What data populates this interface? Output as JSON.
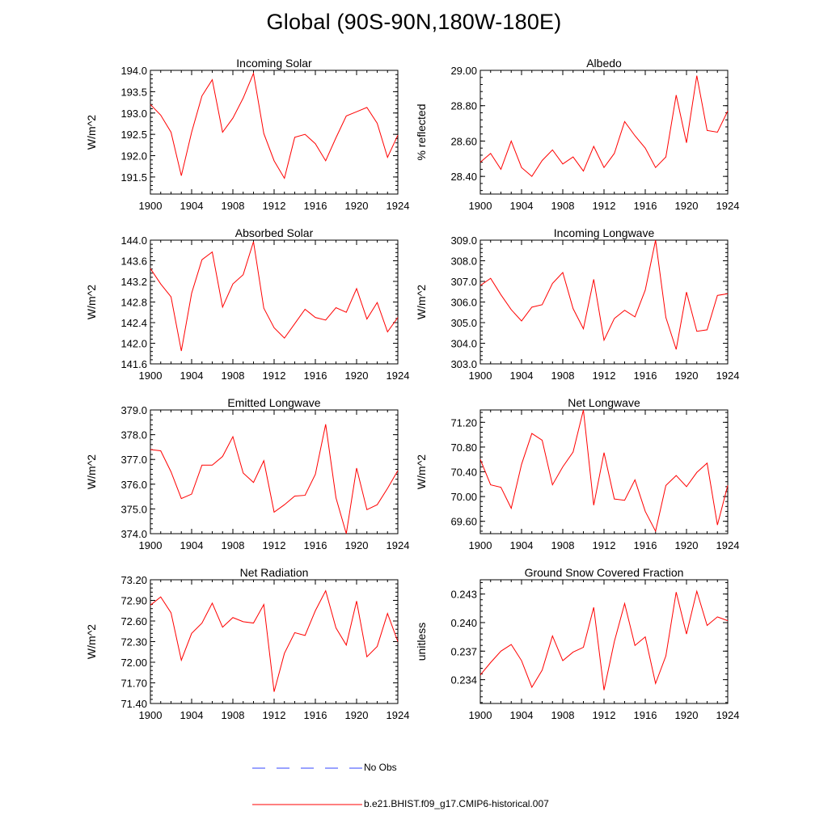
{
  "figure": {
    "title": "Global (90S-90N,180W-180E)"
  },
  "chart_data": [
    {
      "type": "line",
      "title": "Incoming Solar",
      "ylabel": "W/m^2",
      "xlim": [
        1900,
        1924
      ],
      "ylim": [
        191.1,
        194.0
      ],
      "x_ticks": [
        1900,
        1904,
        1908,
        1912,
        1916,
        1920,
        1924
      ],
      "x_tick_labels": [
        "1900",
        "1904",
        "1908",
        "1912",
        "1916",
        "1920",
        "1924"
      ],
      "y_ticks": [
        191.5,
        192.0,
        192.5,
        193.0,
        193.5,
        194.0
      ],
      "y_tick_labels": [
        "191.5",
        "192.0",
        "192.5",
        "193.0",
        "193.5",
        "194.0"
      ],
      "series": [
        {
          "name": "b.e21.BHIST.f09_g17.CMIP6-historical.007",
          "color": "#ff0000",
          "x": [
            1900,
            1901,
            1902,
            1903,
            1904,
            1905,
            1906,
            1907,
            1908,
            1909,
            1910,
            1911,
            1912,
            1913,
            1914,
            1915,
            1916,
            1917,
            1918,
            1919,
            1920,
            1921,
            1922,
            1923,
            1924
          ],
          "values": [
            193.2,
            192.95,
            192.55,
            191.53,
            192.55,
            193.4,
            193.78,
            192.55,
            192.88,
            193.35,
            193.93,
            192.52,
            191.88,
            191.47,
            192.43,
            192.5,
            192.28,
            191.88,
            192.42,
            192.93,
            193.03,
            193.13,
            192.76,
            191.96,
            192.48
          ]
        }
      ]
    },
    {
      "type": "line",
      "title": "Albedo",
      "ylabel": "% reflected",
      "xlim": [
        1900,
        1924
      ],
      "ylim": [
        28.3,
        29.0
      ],
      "x_ticks": [
        1900,
        1904,
        1908,
        1912,
        1916,
        1920,
        1924
      ],
      "x_tick_labels": [
        "1900",
        "1904",
        "1908",
        "1912",
        "1916",
        "1920",
        "1924"
      ],
      "y_ticks": [
        28.4,
        28.6,
        28.8,
        29.0
      ],
      "y_tick_labels": [
        "28.40",
        "28.60",
        "28.80",
        "29.00"
      ],
      "series": [
        {
          "name": "b.e21.BHIST.f09_g17.CMIP6-historical.007",
          "color": "#ff0000",
          "x": [
            1900,
            1901,
            1902,
            1903,
            1904,
            1905,
            1906,
            1907,
            1908,
            1909,
            1910,
            1911,
            1912,
            1913,
            1914,
            1915,
            1916,
            1917,
            1918,
            1919,
            1920,
            1921,
            1922,
            1923,
            1924
          ],
          "values": [
            28.48,
            28.53,
            28.44,
            28.6,
            28.45,
            28.4,
            28.49,
            28.55,
            28.47,
            28.51,
            28.43,
            28.57,
            28.45,
            28.53,
            28.71,
            28.63,
            28.56,
            28.45,
            28.51,
            28.86,
            28.59,
            28.97,
            28.66,
            28.65,
            28.77
          ]
        }
      ]
    },
    {
      "type": "line",
      "title": "Absorbed Solar",
      "ylabel": "W/m^2",
      "xlim": [
        1900,
        1924
      ],
      "ylim": [
        141.6,
        144.0
      ],
      "x_ticks": [
        1900,
        1904,
        1908,
        1912,
        1916,
        1920,
        1924
      ],
      "x_tick_labels": [
        "1900",
        "1904",
        "1908",
        "1912",
        "1916",
        "1920",
        "1924"
      ],
      "y_ticks": [
        141.6,
        142.0,
        142.4,
        142.8,
        143.2,
        143.6,
        144.0
      ],
      "y_tick_labels": [
        "141.6",
        "142.0",
        "142.4",
        "142.8",
        "143.2",
        "143.6",
        "144.0"
      ],
      "series": [
        {
          "name": "b.e21.BHIST.f09_g17.CMIP6-historical.007",
          "color": "#ff0000",
          "x": [
            1900,
            1901,
            1902,
            1903,
            1904,
            1905,
            1906,
            1907,
            1908,
            1909,
            1910,
            1911,
            1912,
            1913,
            1914,
            1915,
            1916,
            1917,
            1918,
            1919,
            1920,
            1921,
            1922,
            1923,
            1924
          ],
          "values": [
            143.45,
            143.15,
            142.9,
            141.85,
            142.97,
            143.62,
            143.77,
            142.7,
            143.15,
            143.33,
            143.97,
            142.68,
            142.3,
            142.1,
            142.38,
            142.66,
            142.5,
            142.45,
            142.69,
            142.6,
            143.06,
            142.47,
            142.79,
            142.22,
            142.5
          ]
        }
      ]
    },
    {
      "type": "line",
      "title": "Incoming Longwave",
      "ylabel": "W/m^2",
      "xlim": [
        1900,
        1924
      ],
      "ylim": [
        303.0,
        309.0
      ],
      "x_ticks": [
        1900,
        1904,
        1908,
        1912,
        1916,
        1920,
        1924
      ],
      "x_tick_labels": [
        "1900",
        "1904",
        "1908",
        "1912",
        "1916",
        "1920",
        "1924"
      ],
      "y_ticks": [
        303.0,
        304.0,
        305.0,
        306.0,
        307.0,
        308.0,
        309.0
      ],
      "y_tick_labels": [
        "303.0",
        "304.0",
        "305.0",
        "306.0",
        "307.0",
        "308.0",
        "309.0"
      ],
      "series": [
        {
          "name": "b.e21.BHIST.f09_g17.CMIP6-historical.007",
          "color": "#ff0000",
          "x": [
            1900,
            1901,
            1902,
            1903,
            1904,
            1905,
            1906,
            1907,
            1908,
            1909,
            1910,
            1911,
            1912,
            1913,
            1914,
            1915,
            1916,
            1917,
            1918,
            1919,
            1920,
            1921,
            1922,
            1923,
            1924
          ],
          "values": [
            306.8,
            307.15,
            306.35,
            305.63,
            305.08,
            305.75,
            305.87,
            306.9,
            307.43,
            305.68,
            304.7,
            307.1,
            304.15,
            305.2,
            305.6,
            305.28,
            306.58,
            309.0,
            305.25,
            303.7,
            306.48,
            304.58,
            304.65,
            306.32,
            306.4
          ]
        }
      ]
    },
    {
      "type": "line",
      "title": "Emitted Longwave",
      "ylabel": "W/m^2",
      "xlim": [
        1900,
        1924
      ],
      "ylim": [
        374.0,
        379.0
      ],
      "x_ticks": [
        1900,
        1904,
        1908,
        1912,
        1916,
        1920,
        1924
      ],
      "x_tick_labels": [
        "1900",
        "1904",
        "1908",
        "1912",
        "1916",
        "1920",
        "1924"
      ],
      "y_ticks": [
        374.0,
        375.0,
        376.0,
        377.0,
        378.0,
        379.0
      ],
      "y_tick_labels": [
        "374.0",
        "375.0",
        "376.0",
        "377.0",
        "378.0",
        "379.0"
      ],
      "series": [
        {
          "name": "b.e21.BHIST.f09_g17.CMIP6-historical.007",
          "color": "#ff0000",
          "x": [
            1900,
            1901,
            1902,
            1903,
            1904,
            1905,
            1906,
            1907,
            1908,
            1909,
            1910,
            1911,
            1912,
            1913,
            1914,
            1915,
            1916,
            1917,
            1918,
            1919,
            1920,
            1921,
            1922,
            1923,
            1924
          ],
          "values": [
            377.4,
            377.35,
            376.5,
            375.42,
            375.6,
            376.77,
            376.77,
            377.12,
            377.92,
            376.45,
            376.07,
            376.95,
            374.87,
            375.17,
            375.52,
            375.55,
            376.4,
            378.42,
            375.45,
            374.0,
            376.65,
            374.97,
            375.17,
            375.83,
            376.55
          ]
        }
      ]
    },
    {
      "type": "line",
      "title": "Net Longwave",
      "ylabel": "W/m^2",
      "xlim": [
        1900,
        1924
      ],
      "ylim": [
        69.4,
        71.4
      ],
      "x_ticks": [
        1900,
        1904,
        1908,
        1912,
        1916,
        1920,
        1924
      ],
      "x_tick_labels": [
        "1900",
        "1904",
        "1908",
        "1912",
        "1916",
        "1920",
        "1924"
      ],
      "y_ticks": [
        69.6,
        70.0,
        70.4,
        70.8,
        71.2
      ],
      "y_tick_labels": [
        "69.60",
        "70.00",
        "70.40",
        "70.80",
        "71.20"
      ],
      "series": [
        {
          "name": "b.e21.BHIST.f09_g17.CMIP6-historical.007",
          "color": "#ff0000",
          "x": [
            1900,
            1901,
            1902,
            1903,
            1904,
            1905,
            1906,
            1907,
            1908,
            1909,
            1910,
            1911,
            1912,
            1913,
            1914,
            1915,
            1916,
            1917,
            1918,
            1919,
            1920,
            1921,
            1922,
            1923,
            1924
          ],
          "values": [
            70.6,
            70.19,
            70.15,
            69.81,
            70.52,
            71.02,
            70.91,
            70.19,
            70.48,
            70.72,
            71.4,
            69.86,
            70.71,
            69.96,
            69.94,
            70.27,
            69.76,
            69.44,
            70.18,
            70.34,
            70.16,
            70.39,
            70.54,
            69.54,
            70.18
          ]
        }
      ]
    },
    {
      "type": "line",
      "title": "Net Radiation",
      "ylabel": "W/m^2",
      "xlim": [
        1900,
        1924
      ],
      "ylim": [
        71.4,
        73.2
      ],
      "x_ticks": [
        1900,
        1904,
        1908,
        1912,
        1916,
        1920,
        1924
      ],
      "x_tick_labels": [
        "1900",
        "1904",
        "1908",
        "1912",
        "1916",
        "1920",
        "1924"
      ],
      "y_ticks": [
        71.4,
        71.7,
        72.0,
        72.3,
        72.6,
        72.9,
        73.2
      ],
      "y_tick_labels": [
        "71.40",
        "71.70",
        "72.00",
        "72.30",
        "72.60",
        "72.90",
        "73.20"
      ],
      "series": [
        {
          "name": "b.e21.BHIST.f09_g17.CMIP6-historical.007",
          "color": "#ff0000",
          "x": [
            1900,
            1901,
            1902,
            1903,
            1904,
            1905,
            1906,
            1907,
            1908,
            1909,
            1910,
            1911,
            1912,
            1913,
            1914,
            1915,
            1916,
            1917,
            1918,
            1919,
            1920,
            1921,
            1922,
            1923,
            1924
          ],
          "values": [
            72.83,
            72.95,
            72.72,
            72.03,
            72.42,
            72.57,
            72.86,
            72.51,
            72.65,
            72.59,
            72.57,
            72.84,
            71.57,
            72.13,
            72.43,
            72.39,
            72.75,
            73.04,
            72.5,
            72.25,
            72.89,
            72.08,
            72.23,
            72.71,
            72.3
          ]
        }
      ]
    },
    {
      "type": "line",
      "title": "Ground Snow Covered Fraction",
      "ylabel": "unitless",
      "xlim": [
        1900,
        1924
      ],
      "ylim": [
        0.2315,
        0.2445
      ],
      "x_ticks": [
        1900,
        1904,
        1908,
        1912,
        1916,
        1920,
        1924
      ],
      "x_tick_labels": [
        "1900",
        "1904",
        "1908",
        "1912",
        "1916",
        "1920",
        "1924"
      ],
      "y_ticks": [
        0.234,
        0.237,
        0.24,
        0.243
      ],
      "y_tick_labels": [
        "0.234",
        "0.237",
        "0.240",
        "0.243"
      ],
      "series": [
        {
          "name": "b.e21.BHIST.f09_g17.CMIP6-historical.007",
          "color": "#ff0000",
          "x": [
            1900,
            1901,
            1902,
            1903,
            1904,
            1905,
            1906,
            1907,
            1908,
            1909,
            1910,
            1911,
            1912,
            1913,
            1914,
            1915,
            1916,
            1917,
            1918,
            1919,
            1920,
            1921,
            1922,
            1923,
            1924
          ],
          "values": [
            0.2345,
            0.2358,
            0.237,
            0.2377,
            0.236,
            0.2332,
            0.235,
            0.2386,
            0.236,
            0.2369,
            0.2374,
            0.2416,
            0.2329,
            0.238,
            0.242,
            0.2376,
            0.2385,
            0.2336,
            0.2365,
            0.2432,
            0.2388,
            0.2433,
            0.2397,
            0.2406,
            0.2402
          ]
        }
      ]
    }
  ],
  "legend": {
    "items": [
      {
        "label": "No Obs",
        "color": "#3344ff",
        "style": "dashed"
      },
      {
        "label": "b.e21.BHIST.f09_g17.CMIP6-historical.007",
        "color": "#ff0000",
        "style": "solid"
      }
    ]
  }
}
